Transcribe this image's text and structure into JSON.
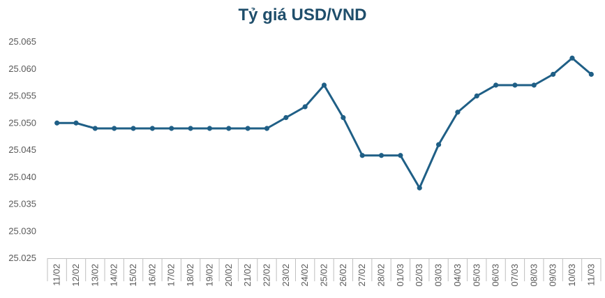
{
  "chart_data": {
    "type": "line",
    "title": "Tỷ giá USD/VND",
    "xlabel": "",
    "ylabel": "",
    "ylim": [
      25.025,
      25.065
    ],
    "yticks": [
      "25.025",
      "25.030",
      "25.035",
      "25.040",
      "25.045",
      "25.050",
      "25.055",
      "25.060",
      "25.065"
    ],
    "grid": false,
    "legend": "none",
    "line_color": "#1f5f86",
    "categories": [
      "11/02",
      "12/02",
      "13/02",
      "14/02",
      "15/02",
      "16/02",
      "17/02",
      "18/02",
      "19/02",
      "20/02",
      "21/02",
      "22/02",
      "23/02",
      "24/02",
      "25/02",
      "26/02",
      "27/02",
      "28/02",
      "01/03",
      "02/03",
      "03/03",
      "04/03",
      "05/03",
      "06/03",
      "07/03",
      "08/03",
      "09/03",
      "10/03",
      "11/03"
    ],
    "series": [
      {
        "values": [
          25.05,
          25.05,
          25.049,
          25.049,
          25.049,
          25.049,
          25.049,
          25.049,
          25.049,
          25.049,
          25.049,
          25.049,
          25.051,
          25.053,
          25.057,
          25.051,
          25.044,
          25.044,
          25.044,
          25.038,
          25.046,
          25.052,
          25.055,
          25.057,
          25.057,
          25.057,
          25.059,
          25.062,
          25.059
        ]
      }
    ]
  }
}
